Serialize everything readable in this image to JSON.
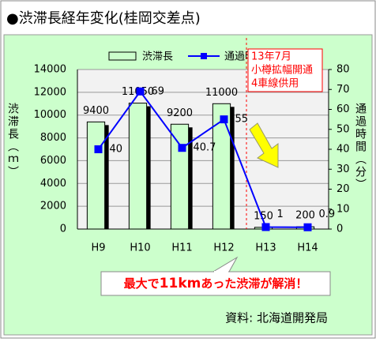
{
  "chart_data": {
    "type": "bar_line",
    "title": "●渋滞長経年変化(桂岡交差点)",
    "y_label": "渋滞長（ｍ）",
    "y2_label": "通過時間（分）",
    "categories": [
      "H9",
      "H10",
      "H11",
      "H12",
      "H13",
      "H14"
    ],
    "series": [
      {
        "name": "渋滞長",
        "type": "bar",
        "color": "#ccffcc",
        "values": [
          9400,
          11050,
          9200,
          11000,
          150,
          200
        ]
      },
      {
        "name": "通過時間",
        "type": "line",
        "axis": "y2",
        "color": "#0000ff",
        "values": [
          40,
          69,
          40.7,
          55,
          1,
          0.9
        ]
      }
    ],
    "ylim": [
      0,
      14000
    ],
    "yticks": [
      0,
      2000,
      4000,
      6000,
      8000,
      10000,
      12000,
      14000
    ],
    "y2lim": [
      0,
      80
    ],
    "y2ticks": [
      0,
      10,
      20,
      30,
      40,
      50,
      60,
      70,
      80
    ],
    "grid": true,
    "note": [
      "13年7月",
      "小樽拡幅開通",
      "4車線供用"
    ],
    "callout": [
      "最大で",
      "11km",
      "あった渋滞が解消！"
    ],
    "source": "資料: 北海道開発局"
  }
}
